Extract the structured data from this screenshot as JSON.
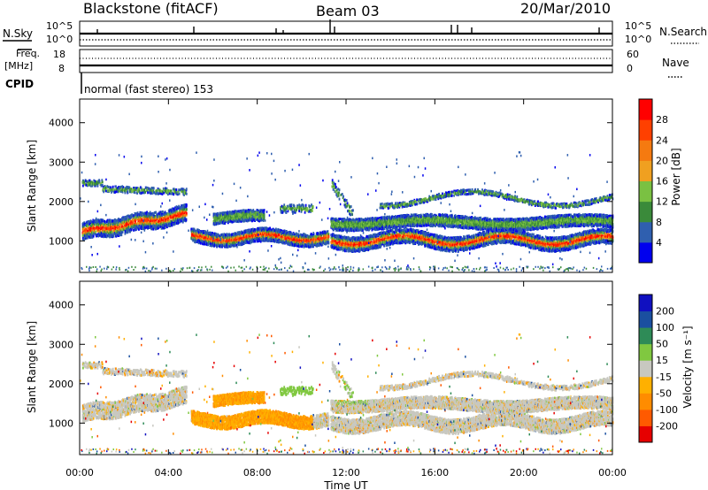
{
  "header": {
    "title": "Blackstone (fitACF)",
    "beam": "Beam 03",
    "date": "20/Mar/2010"
  },
  "panels": {
    "noise_left_label": "N.Sky",
    "noise_right_label": "N.Search",
    "noise_ticks": [
      "10^5",
      "10^0"
    ],
    "freq_left_label_1": "Freq.",
    "freq_left_label_2": "[MHz]",
    "freq_ticks": [
      "18",
      "8"
    ],
    "nave_label": "Nave",
    "nave_ticks": [
      "60",
      "0"
    ],
    "cpid_label": "CPID",
    "cpid_value": "normal (fast stereo) 153"
  },
  "colors": {
    "power": [
      "#0000ee",
      "#2f5faf",
      "#3a8a3a",
      "#7ac142",
      "#f0a020",
      "#f57a10",
      "#ff4000",
      "#ff0000"
    ],
    "velocity": [
      "#e60000",
      "#ff5a00",
      "#ff8c00",
      "#ffb000",
      "#c8c8c0",
      "#80c840",
      "#2e8b57",
      "#1a4fa0",
      "#1010c0"
    ]
  },
  "chart_data": [
    {
      "type": "heatmap",
      "name": "Power",
      "xlabel": "",
      "ylabel": "Slant Range [km]",
      "ylim": [
        200,
        4600
      ],
      "yticks": [
        1000,
        2000,
        3000,
        4000
      ],
      "x_ticks": [
        "00:00",
        "04:00",
        "08:00",
        "12:00",
        "16:00",
        "20:00",
        "00:00"
      ],
      "colorbar_label": "Power [dB]",
      "colorbar_ticks": [
        28,
        24,
        20,
        16,
        12,
        8,
        4
      ],
      "colorbar_range": [
        0,
        32
      ]
    },
    {
      "type": "heatmap",
      "name": "Velocity",
      "xlabel": "Time UT",
      "ylabel": "Slant Range [km]",
      "ylim": [
        200,
        4600
      ],
      "yticks": [
        1000,
        2000,
        3000,
        4000
      ],
      "x_ticks": [
        "00:00",
        "04:00",
        "08:00",
        "12:00",
        "16:00",
        "20:00",
        "00:00"
      ],
      "colorbar_label": "Velocity [m s⁻¹]",
      "colorbar_ticks": [
        200,
        100,
        50,
        15,
        -15,
        -50,
        -100,
        -200
      ]
    }
  ]
}
